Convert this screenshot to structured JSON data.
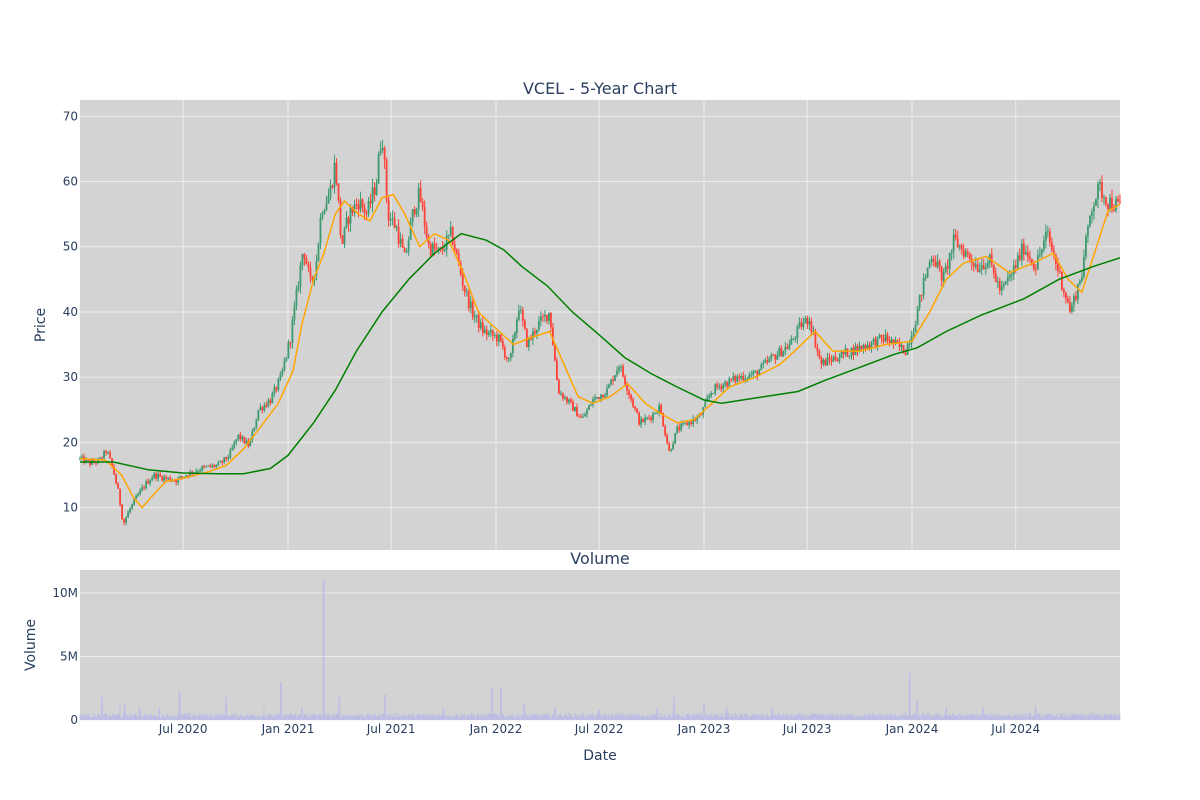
{
  "chart_data": [
    {
      "type": "candlestick",
      "title": "VCEL - 5-Year Chart",
      "ylabel": "Price",
      "xlabel": "",
      "ylim": [
        3.5,
        72.5
      ],
      "y_ticks": [
        10,
        20,
        30,
        40,
        50,
        60,
        70
      ],
      "x_range": [
        "2020-01-02",
        "2024-12-31"
      ],
      "x_ticks": [
        {
          "date": "2020-07-01",
          "label": "Jul 2020"
        },
        {
          "date": "2021-01-01",
          "label": "Jan 2021"
        },
        {
          "date": "2021-07-01",
          "label": "Jul 2021"
        },
        {
          "date": "2022-01-01",
          "label": "Jan 2022"
        },
        {
          "date": "2022-07-01",
          "label": "Jul 2022"
        },
        {
          "date": "2023-01-01",
          "label": "Jan 2023"
        },
        {
          "date": "2023-07-01",
          "label": "Jul 2023"
        },
        {
          "date": "2024-01-01",
          "label": "Jan 2024"
        },
        {
          "date": "2024-07-01",
          "label": "Jul 2024"
        }
      ],
      "grid": true,
      "colors": {
        "plot_bg": "#d3d3d3",
        "grid": "#ececec",
        "up": "#3d9970",
        "down": "#ff4136",
        "ma_short": "#ffa500",
        "ma_long": "#008000",
        "text": "#2a3f5f"
      },
      "price_series": [
        [
          "2020-01-02",
          17.5
        ],
        [
          "2020-01-20",
          16.8
        ],
        [
          "2020-02-05",
          17.2
        ],
        [
          "2020-02-18",
          18.8
        ],
        [
          "2020-03-01",
          15.5
        ],
        [
          "2020-03-10",
          12.0
        ],
        [
          "2020-03-18",
          7.5
        ],
        [
          "2020-03-28",
          9.5
        ],
        [
          "2020-04-10",
          11.5
        ],
        [
          "2020-04-25",
          13.5
        ],
        [
          "2020-05-10",
          15.0
        ],
        [
          "2020-06-01",
          14.5
        ],
        [
          "2020-06-20",
          14.2
        ],
        [
          "2020-07-05",
          15.0
        ],
        [
          "2020-08-01",
          16.0
        ],
        [
          "2020-09-01",
          16.5
        ],
        [
          "2020-09-20",
          18.0
        ],
        [
          "2020-10-05",
          21.0
        ],
        [
          "2020-10-25",
          19.5
        ],
        [
          "2020-11-10",
          25.0
        ],
        [
          "2020-12-01",
          26.5
        ],
        [
          "2020-12-20",
          30.0
        ],
        [
          "2021-01-05",
          36.0
        ],
        [
          "2021-01-15",
          42.0
        ],
        [
          "2021-01-28",
          50.0
        ],
        [
          "2021-02-10",
          44.0
        ],
        [
          "2021-02-20",
          48.0
        ],
        [
          "2021-03-01",
          56.0
        ],
        [
          "2021-03-15",
          58.0
        ],
        [
          "2021-03-25",
          63.0
        ],
        [
          "2021-04-05",
          50.0
        ],
        [
          "2021-04-18",
          55.0
        ],
        [
          "2021-05-05",
          57.0
        ],
        [
          "2021-05-20",
          55.0
        ],
        [
          "2021-06-05",
          60.0
        ],
        [
          "2021-06-15",
          68.0
        ],
        [
          "2021-06-25",
          55.0
        ],
        [
          "2021-07-10",
          53.0
        ],
        [
          "2021-07-25",
          48.0
        ],
        [
          "2021-08-10",
          56.0
        ],
        [
          "2021-08-20",
          58.0
        ],
        [
          "2021-09-05",
          50.0
        ],
        [
          "2021-09-25",
          49.0
        ],
        [
          "2021-10-15",
          52.0
        ],
        [
          "2021-11-05",
          44.0
        ],
        [
          "2021-11-20",
          40.0
        ],
        [
          "2021-12-10",
          37.0
        ],
        [
          "2022-01-05",
          36.0
        ],
        [
          "2022-01-25",
          32.0
        ],
        [
          "2022-02-10",
          41.0
        ],
        [
          "2022-02-25",
          35.0
        ],
        [
          "2022-03-15",
          38.0
        ],
        [
          "2022-04-05",
          40.0
        ],
        [
          "2022-04-20",
          28.0
        ],
        [
          "2022-05-10",
          26.0
        ],
        [
          "2022-06-01",
          23.5
        ],
        [
          "2022-06-20",
          26.5
        ],
        [
          "2022-07-15",
          28.0
        ],
        [
          "2022-08-05",
          32.0
        ],
        [
          "2022-08-25",
          27.0
        ],
        [
          "2022-09-10",
          23.0
        ],
        [
          "2022-09-30",
          24.0
        ],
        [
          "2022-10-15",
          25.5
        ],
        [
          "2022-11-01",
          18.5
        ],
        [
          "2022-11-15",
          22.0
        ],
        [
          "2022-12-05",
          23.0
        ],
        [
          "2022-12-25",
          24.0
        ],
        [
          "2023-01-15",
          28.0
        ],
        [
          "2023-02-05",
          29.0
        ],
        [
          "2023-03-05",
          30.0
        ],
        [
          "2023-04-01",
          30.5
        ],
        [
          "2023-05-01",
          33.0
        ],
        [
          "2023-06-01",
          35.0
        ],
        [
          "2023-06-20",
          38.0
        ],
        [
          "2023-07-05",
          39.0
        ],
        [
          "2023-07-25",
          32.0
        ],
        [
          "2023-08-20",
          33.0
        ],
        [
          "2023-09-15",
          34.0
        ],
        [
          "2023-10-15",
          35.0
        ],
        [
          "2023-11-15",
          36.0
        ],
        [
          "2023-12-20",
          34.0
        ],
        [
          "2024-01-05",
          38.0
        ],
        [
          "2024-01-20",
          44.0
        ],
        [
          "2024-02-05",
          49.0
        ],
        [
          "2024-02-25",
          45.0
        ],
        [
          "2024-03-15",
          51.0
        ],
        [
          "2024-04-05",
          49.0
        ],
        [
          "2024-04-25",
          47.0
        ],
        [
          "2024-05-15",
          48.0
        ],
        [
          "2024-06-05",
          43.0
        ],
        [
          "2024-06-25",
          46.0
        ],
        [
          "2024-07-15",
          50.0
        ],
        [
          "2024-08-05",
          47.0
        ],
        [
          "2024-08-25",
          52.0
        ],
        [
          "2024-09-15",
          46.0
        ],
        [
          "2024-10-05",
          40.0
        ],
        [
          "2024-10-25",
          46.0
        ],
        [
          "2024-11-10",
          56.0
        ],
        [
          "2024-11-25",
          59.0
        ],
        [
          "2024-12-10",
          57.0
        ],
        [
          "2024-12-31",
          56.0
        ]
      ],
      "ma_short": [
        [
          "2020-01-02",
          17.5
        ],
        [
          "2020-02-15",
          17.3
        ],
        [
          "2020-03-15",
          15.0
        ],
        [
          "2020-04-05",
          11.5
        ],
        [
          "2020-04-20",
          10.0
        ],
        [
          "2020-05-10",
          12.0
        ],
        [
          "2020-06-01",
          14.0
        ],
        [
          "2020-07-01",
          14.5
        ],
        [
          "2020-08-15",
          15.5
        ],
        [
          "2020-09-15",
          16.5
        ],
        [
          "2020-10-15",
          19.0
        ],
        [
          "2020-11-15",
          22.5
        ],
        [
          "2020-12-15",
          26.0
        ],
        [
          "2021-01-10",
          31.0
        ],
        [
          "2021-01-25",
          38.0
        ],
        [
          "2021-02-15",
          45.0
        ],
        [
          "2021-03-05",
          49.0
        ],
        [
          "2021-03-25",
          55.0
        ],
        [
          "2021-04-10",
          57.0
        ],
        [
          "2021-05-05",
          55.0
        ],
        [
          "2021-05-25",
          54.0
        ],
        [
          "2021-06-15",
          57.5
        ],
        [
          "2021-07-05",
          58.0
        ],
        [
          "2021-07-25",
          55.0
        ],
        [
          "2021-08-20",
          50.0
        ],
        [
          "2021-09-15",
          52.0
        ],
        [
          "2021-10-10",
          51.0
        ],
        [
          "2021-11-05",
          46.0
        ],
        [
          "2021-12-01",
          40.0
        ],
        [
          "2021-12-25",
          38.0
        ],
        [
          "2022-02-01",
          35.0
        ],
        [
          "2022-03-01",
          36.0
        ],
        [
          "2022-04-05",
          37.0
        ],
        [
          "2022-04-25",
          33.0
        ],
        [
          "2022-05-25",
          27.0
        ],
        [
          "2022-06-20",
          26.0
        ],
        [
          "2022-07-20",
          27.0
        ],
        [
          "2022-08-20",
          29.0
        ],
        [
          "2022-09-20",
          26.0
        ],
        [
          "2022-10-15",
          24.5
        ],
        [
          "2022-11-15",
          23.0
        ],
        [
          "2022-12-15",
          23.5
        ],
        [
          "2023-01-15",
          26.0
        ],
        [
          "2023-02-15",
          28.5
        ],
        [
          "2023-04-01",
          30.0
        ],
        [
          "2023-05-15",
          32.0
        ],
        [
          "2023-06-15",
          34.5
        ],
        [
          "2023-07-15",
          37.0
        ],
        [
          "2023-08-15",
          34.0
        ],
        [
          "2023-10-01",
          34.0
        ],
        [
          "2023-11-15",
          35.0
        ],
        [
          "2024-01-01",
          35.5
        ],
        [
          "2024-02-01",
          40.0
        ],
        [
          "2024-03-01",
          45.0
        ],
        [
          "2024-04-01",
          47.5
        ],
        [
          "2024-05-10",
          48.5
        ],
        [
          "2024-06-20",
          46.0
        ],
        [
          "2024-08-01",
          47.5
        ],
        [
          "2024-09-05",
          49.0
        ],
        [
          "2024-10-01",
          45.0
        ],
        [
          "2024-10-25",
          43.0
        ],
        [
          "2024-11-20",
          50.0
        ],
        [
          "2024-12-10",
          55.5
        ],
        [
          "2024-12-31",
          56.5
        ]
      ],
      "ma_long": [
        [
          "2020-01-02",
          17.0
        ],
        [
          "2020-03-01",
          17.0
        ],
        [
          "2020-05-01",
          15.8
        ],
        [
          "2020-07-01",
          15.3
        ],
        [
          "2020-09-01",
          15.2
        ],
        [
          "2020-10-15",
          15.2
        ],
        [
          "2020-12-01",
          16.0
        ],
        [
          "2021-01-01",
          18.0
        ],
        [
          "2021-02-15",
          23.0
        ],
        [
          "2021-03-25",
          28.0
        ],
        [
          "2021-05-01",
          34.0
        ],
        [
          "2021-06-15",
          40.0
        ],
        [
          "2021-08-01",
          45.0
        ],
        [
          "2021-09-15",
          49.0
        ],
        [
          "2021-11-01",
          52.0
        ],
        [
          "2021-12-15",
          51.0
        ],
        [
          "2022-01-15",
          49.5
        ],
        [
          "2022-02-15",
          47.0
        ],
        [
          "2022-04-01",
          44.0
        ],
        [
          "2022-05-15",
          40.0
        ],
        [
          "2022-07-01",
          36.5
        ],
        [
          "2022-08-15",
          33.0
        ],
        [
          "2022-10-01",
          30.5
        ],
        [
          "2022-11-15",
          28.5
        ],
        [
          "2023-01-01",
          26.5
        ],
        [
          "2023-02-01",
          26.0
        ],
        [
          "2023-04-01",
          26.8
        ],
        [
          "2023-06-15",
          27.8
        ],
        [
          "2023-08-01",
          29.5
        ],
        [
          "2023-10-01",
          31.5
        ],
        [
          "2023-12-01",
          33.5
        ],
        [
          "2024-01-10",
          34.5
        ],
        [
          "2024-03-01",
          37.0
        ],
        [
          "2024-05-01",
          39.5
        ],
        [
          "2024-07-15",
          42.0
        ],
        [
          "2024-09-15",
          45.0
        ],
        [
          "2024-11-15",
          47.0
        ],
        [
          "2024-12-31",
          48.3
        ]
      ]
    },
    {
      "type": "bar",
      "title": "Volume",
      "ylabel": "Volume",
      "xlabel": "Date",
      "ylim": [
        0,
        11800000
      ],
      "y_ticks": [
        {
          "value": 0,
          "label": "0"
        },
        {
          "value": 5000000,
          "label": "5M"
        },
        {
          "value": 10000000,
          "label": "10M"
        }
      ],
      "grid": true,
      "bar_color": "#b8b8e8",
      "baseline_volume": 400000,
      "spikes": [
        [
          "2020-02-10",
          1800000
        ],
        [
          "2020-03-12",
          1500000
        ],
        [
          "2020-03-20",
          1200000
        ],
        [
          "2020-04-15",
          1000000
        ],
        [
          "2020-05-20",
          900000
        ],
        [
          "2020-06-25",
          2200000
        ],
        [
          "2020-09-15",
          1800000
        ],
        [
          "2020-11-20",
          1000000
        ],
        [
          "2020-12-20",
          3000000
        ],
        [
          "2021-01-25",
          900000
        ],
        [
          "2021-03-04",
          11000000
        ],
        [
          "2021-04-01",
          1800000
        ],
        [
          "2021-06-20",
          2000000
        ],
        [
          "2021-10-01",
          900000
        ],
        [
          "2021-12-25",
          2500000
        ],
        [
          "2022-01-10",
          2500000
        ],
        [
          "2022-02-20",
          1300000
        ],
        [
          "2022-04-15",
          1000000
        ],
        [
          "2022-07-01",
          800000
        ],
        [
          "2022-10-10",
          900000
        ],
        [
          "2022-11-10",
          1800000
        ],
        [
          "2023-01-01",
          1200000
        ],
        [
          "2023-02-10",
          1000000
        ],
        [
          "2023-05-01",
          900000
        ],
        [
          "2023-12-28",
          3700000
        ],
        [
          "2024-01-10",
          1500000
        ],
        [
          "2024-03-01",
          1000000
        ],
        [
          "2024-05-05",
          1000000
        ],
        [
          "2024-08-05",
          1100000
        ],
        [
          "2024-11-10",
          800000
        ]
      ]
    }
  ],
  "axes": {
    "date_label": "Date"
  }
}
